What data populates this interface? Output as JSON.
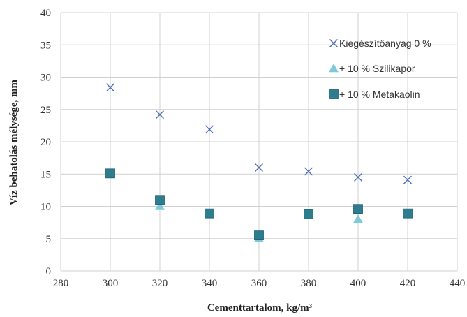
{
  "chart_data": {
    "type": "scatter",
    "xlabel": "Cementtartalom, kg/m³",
    "ylabel": "Víz behatolás mélysége, mm",
    "xlim": [
      280,
      440
    ],
    "ylim": [
      0,
      40
    ],
    "x_ticks": [
      "280",
      "300",
      "320",
      "340",
      "360",
      "380",
      "400",
      "420",
      "440"
    ],
    "y_ticks": [
      "0",
      "5",
      "10",
      "15",
      "20",
      "25",
      "30",
      "35",
      "40"
    ],
    "grid": true,
    "legend_position": "top-right",
    "series": [
      {
        "name": "Kiegészítőanyag 0 %",
        "marker": "x",
        "color": "#4a6fb5",
        "points": [
          {
            "x": 300,
            "y": 28.4
          },
          {
            "x": 320,
            "y": 24.2
          },
          {
            "x": 340,
            "y": 21.9
          },
          {
            "x": 360,
            "y": 16.0
          },
          {
            "x": 380,
            "y": 15.4
          },
          {
            "x": 400,
            "y": 14.5
          },
          {
            "x": 420,
            "y": 14.1
          }
        ]
      },
      {
        "name": "+ 10 % Szilikapor",
        "marker": "triangle",
        "color": "#7ecad9",
        "points": [
          {
            "x": 320,
            "y": 10.0
          },
          {
            "x": 360,
            "y": 5.0
          },
          {
            "x": 400,
            "y": 8.0
          }
        ]
      },
      {
        "name": "+ 10 % Metakaolin",
        "marker": "square",
        "color": "#2e7d8f",
        "points": [
          {
            "x": 300,
            "y": 15.1
          },
          {
            "x": 320,
            "y": 11.0
          },
          {
            "x": 340,
            "y": 8.9
          },
          {
            "x": 360,
            "y": 5.5
          },
          {
            "x": 380,
            "y": 8.8
          },
          {
            "x": 400,
            "y": 9.6
          },
          {
            "x": 420,
            "y": 8.9
          }
        ]
      }
    ]
  }
}
